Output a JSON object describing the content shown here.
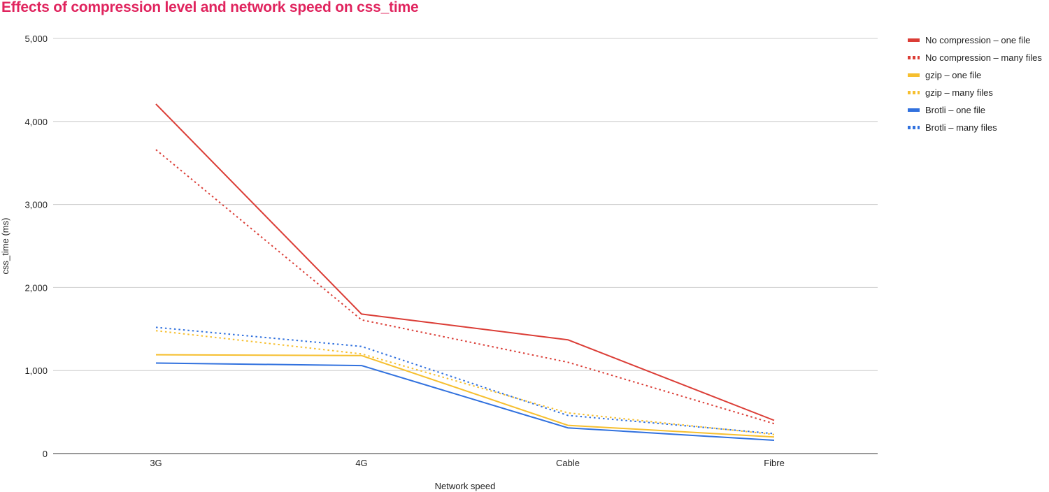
{
  "title": "Effects of compression level and network speed on css_time",
  "chart_data": {
    "type": "line",
    "title": "Effects of compression level and network speed on css_time",
    "xlabel": "Network speed",
    "ylabel": "css_time (ms)",
    "categories": [
      "3G",
      "4G",
      "Cable",
      "Fibre"
    ],
    "ylim": [
      0,
      5000
    ],
    "yticks": [
      0,
      1000,
      2000,
      3000,
      4000,
      5000
    ],
    "ytick_labels": [
      "0",
      "1,000",
      "2,000",
      "3,000",
      "4,000",
      "5,000"
    ],
    "grid": true,
    "legend_position": "right",
    "series": [
      {
        "name": "No compression – one file",
        "color": "#db3d36",
        "style": "solid",
        "values": [
          4210,
          1680,
          1370,
          400
        ]
      },
      {
        "name": "No compression – many files",
        "color": "#db3d36",
        "style": "dotted",
        "values": [
          3660,
          1610,
          1100,
          360
        ]
      },
      {
        "name": "gzip – one file",
        "color": "#f6bf2f",
        "style": "solid",
        "values": [
          1190,
          1180,
          340,
          200
        ]
      },
      {
        "name": "gzip – many files",
        "color": "#f6bf2f",
        "style": "dotted",
        "values": [
          1480,
          1200,
          490,
          230
        ]
      },
      {
        "name": "Brotli – one file",
        "color": "#3171de",
        "style": "solid",
        "values": [
          1090,
          1060,
          310,
          160
        ]
      },
      {
        "name": "Brotli – many files",
        "color": "#3171de",
        "style": "dotted",
        "values": [
          1520,
          1290,
          460,
          240
        ]
      }
    ]
  }
}
